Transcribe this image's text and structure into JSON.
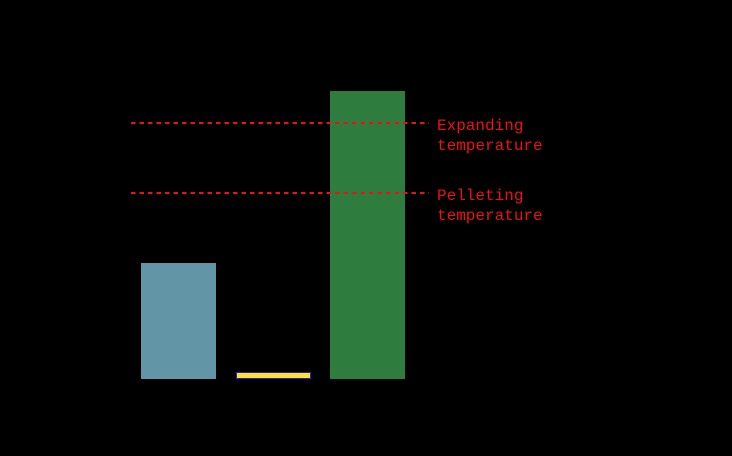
{
  "chart_data": {
    "type": "bar",
    "title": "",
    "background": "#000000",
    "axes_visible": false,
    "legend": "none",
    "value_unit": "relative px (no axis, ticks or category labels visible)",
    "categories": [
      "",
      "",
      ""
    ],
    "bars": [
      {
        "name": "bar-1-blue",
        "value": 116,
        "fill": "#6296A6",
        "border": null
      },
      {
        "name": "bar-2-yellow",
        "value": 7,
        "fill": "#FFE135",
        "border": "#2222C8"
      },
      {
        "name": "bar-3-green",
        "value": 288,
        "fill": "#2E7D3E",
        "border": null
      }
    ],
    "reference_lines": [
      {
        "name": "expanding-temperature",
        "value": 256,
        "label": "Expanding\ntemperature",
        "color": "#EE1111",
        "style": "dashed"
      },
      {
        "name": "pelleting-temperature",
        "value": 186,
        "label": "Pelleting\ntemperature",
        "color": "#EE1111",
        "style": "dashed"
      }
    ]
  }
}
